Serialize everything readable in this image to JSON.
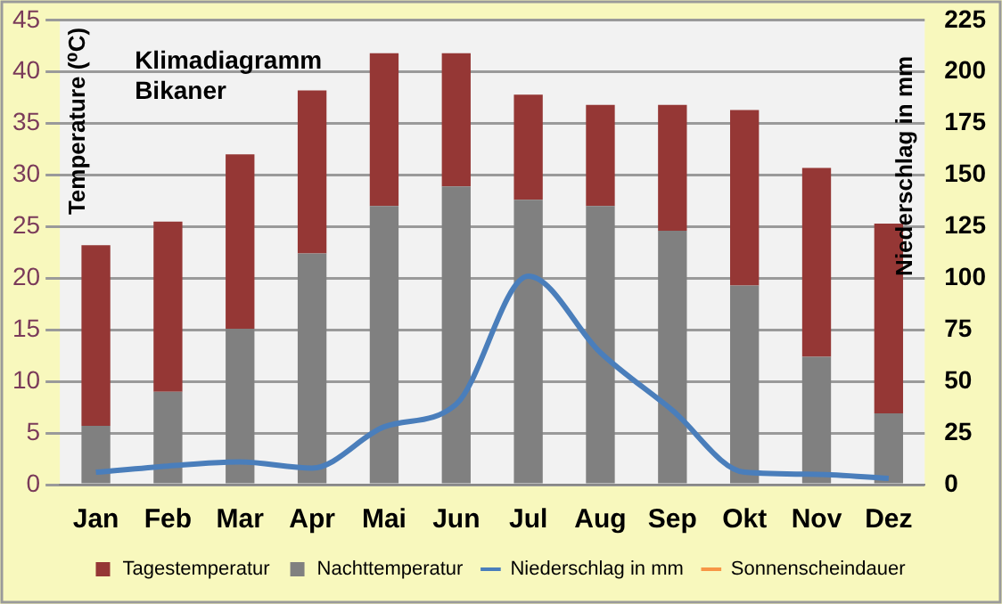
{
  "chart_data": {
    "type": "bar",
    "title": "Klimadiagramm Bikaner",
    "ylabel": "Temperature (⁰C)",
    "y2label": "Niederschlag in mm",
    "categories": [
      "Jan",
      "Feb",
      "Mar",
      "Apr",
      "Mai",
      "Jun",
      "Jul",
      "Aug",
      "Sep",
      "Okt",
      "Nov",
      "Dez"
    ],
    "stacked": true,
    "series": [
      {
        "name": "Tagestemperatur",
        "color": "#953735",
        "values": [
          17.5,
          16.5,
          16.9,
          15.8,
          14.8,
          12.9,
          10.2,
          9.8,
          12.2,
          17.0,
          18.3,
          18.4
        ]
      },
      {
        "name": "Nachttemperatur",
        "color": "#808080",
        "values": [
          5.7,
          9.0,
          15.1,
          22.4,
          27.0,
          28.9,
          27.6,
          27.0,
          24.6,
          19.3,
          12.4,
          6.9
        ]
      },
      {
        "name": "Niederschlag in mm",
        "type": "line",
        "axis": "y2",
        "color": "#4a7ebb",
        "values": [
          6,
          9,
          11,
          8,
          28,
          39,
          101,
          64,
          36,
          6,
          5,
          3
        ]
      },
      {
        "name": "Sonnenscheindauer",
        "type": "line",
        "axis": "y2",
        "color": "#f79646",
        "values": [
          null,
          null,
          null,
          null,
          null,
          null,
          null,
          null,
          null,
          null,
          null,
          null
        ]
      }
    ],
    "ylim": [
      0,
      45
    ],
    "yticks": [
      0,
      5,
      10,
      15,
      20,
      25,
      30,
      35,
      40,
      45
    ],
    "y2lim": [
      0,
      225
    ],
    "y2ticks": [
      0,
      25,
      50,
      75,
      100,
      125,
      150,
      175,
      200,
      225
    ],
    "grid": "y",
    "legend": "bottom"
  }
}
